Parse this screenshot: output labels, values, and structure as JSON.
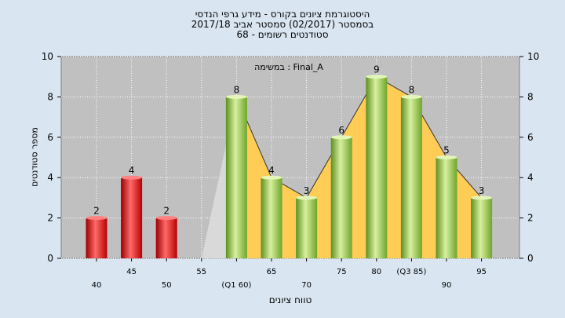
{
  "title": "היסטוגרמת ציונים בקורס - מידע גרפי הנדסי",
  "subtitle": "בסמסטר (02/2017) סמסטר אביב 2017/18",
  "subtitle2": "סטודנטים רשומים - 68",
  "annotation": "במשימה : Final_A",
  "colors": {
    "background": "#d9e6f2",
    "plot_bg": "#c0c0c0",
    "fail_bar": "#e02020",
    "pass_bar": "#8cbf3f",
    "area": "#ffcc55",
    "grey_area": "#dcdcdc"
  },
  "chart_data": {
    "type": "bar",
    "title": "היסטוגרמת ציונים בקורס - מידע גרפי הנדסי",
    "xlabel": "טווח ציונים",
    "ylabel": "מספר סטודנטים",
    "ylim": [
      0,
      10
    ],
    "yticks": [
      0,
      2,
      4,
      6,
      8,
      10
    ],
    "grid": true,
    "categories": [
      "40",
      "45",
      "50",
      "55",
      "(Q1 60)",
      "65",
      "70",
      "75",
      "80",
      "(Q3 85)",
      "90",
      "95"
    ],
    "values": [
      2,
      4,
      2,
      0,
      8,
      4,
      3,
      6,
      9,
      8,
      5,
      3
    ],
    "bar_group": [
      "fail",
      "fail",
      "fail",
      "fail",
      "pass",
      "pass",
      "pass",
      "pass",
      "pass",
      "pass",
      "pass",
      "pass"
    ],
    "data_labels": [
      "2",
      "4",
      "2",
      "",
      "8",
      "4",
      "3",
      "6",
      "9",
      "8",
      "5",
      "3"
    ],
    "x_label_row": [
      "low",
      "high",
      "low",
      "high",
      "low",
      "high",
      "low",
      "high",
      "high",
      "high",
      "low",
      "high"
    ]
  }
}
